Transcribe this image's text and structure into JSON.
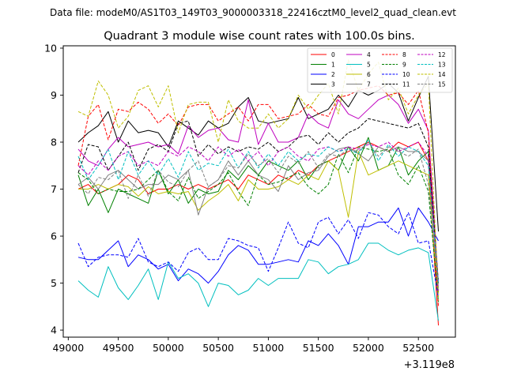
{
  "chart_data": {
    "type": "line",
    "suptitle": "Data file: modeM0/AS1T03_149T03_9000003318_22416cztM0_level2_quad_clean.evt",
    "title": "Quadrant 3 module wise count rates with 100.0s bins.",
    "xlabel": "",
    "ylabel": "",
    "x_offset_label": "+3.119e8",
    "xlim": [
      48950,
      52870
    ],
    "ylim": [
      3.85,
      10.05
    ],
    "xticks": [
      49000,
      49500,
      50000,
      50500,
      51000,
      51500,
      52000,
      52500
    ],
    "xtick_labels": [
      "49000",
      "49500",
      "50000",
      "50500",
      "51000",
      "51500",
      "52000",
      "52500"
    ],
    "yticks": [
      4,
      5,
      6,
      7,
      8,
      9,
      10
    ],
    "ytick_labels": [
      "4",
      "5",
      "6",
      "7",
      "8",
      "9",
      "10"
    ],
    "x": [
      49100,
      49200,
      49300,
      49400,
      49500,
      49600,
      49700,
      49800,
      49900,
      50000,
      50100,
      50200,
      50300,
      50400,
      50500,
      50600,
      50700,
      50800,
      50900,
      51000,
      51100,
      51200,
      51300,
      51400,
      51500,
      51600,
      51700,
      51800,
      51900,
      52000,
      52100,
      52200,
      52300,
      52400,
      52500,
      52600,
      52700
    ],
    "series": [
      {
        "name": "0",
        "color": "#ff0000",
        "dash": "solid",
        "values": [
          7.0,
          7.1,
          6.9,
          7.0,
          7.1,
          7.3,
          7.2,
          6.9,
          7.0,
          7.0,
          7.1,
          7.0,
          7.1,
          7.0,
          7.1,
          7.2,
          7.0,
          7.3,
          7.2,
          7.1,
          7.3,
          7.2,
          7.4,
          7.3,
          7.5,
          7.6,
          7.7,
          7.8,
          7.9,
          8.0,
          7.9,
          7.8,
          8.0,
          7.9,
          8.0,
          7.6,
          4.1
        ]
      },
      {
        "name": "1",
        "color": "#008000",
        "dash": "solid",
        "values": [
          7.3,
          6.65,
          7.0,
          6.5,
          7.0,
          6.9,
          6.8,
          6.7,
          7.4,
          6.9,
          7.2,
          6.7,
          7.0,
          6.9,
          6.95,
          7.4,
          7.2,
          7.5,
          7.3,
          7.6,
          7.5,
          7.4,
          7.6,
          7.2,
          7.5,
          7.6,
          7.4,
          7.9,
          7.6,
          8.1,
          7.4,
          7.5,
          7.9,
          7.3,
          7.6,
          7.8,
          4.8
        ]
      },
      {
        "name": "2",
        "color": "#0000ff",
        "dash": "solid",
        "values": [
          5.55,
          5.5,
          5.5,
          5.7,
          5.9,
          5.35,
          5.6,
          5.5,
          5.3,
          5.4,
          5.05,
          5.3,
          5.2,
          5.0,
          5.25,
          5.6,
          5.8,
          5.7,
          5.4,
          5.4,
          5.45,
          5.5,
          5.45,
          5.9,
          5.8,
          6.05,
          5.8,
          5.4,
          6.2,
          6.2,
          6.3,
          6.3,
          6.6,
          6.0,
          6.6,
          6.3,
          5.9
        ]
      },
      {
        "name": "3",
        "color": "#000000",
        "dash": "solid",
        "values": [
          8.0,
          8.2,
          8.35,
          8.65,
          8.0,
          8.45,
          8.2,
          8.25,
          8.2,
          7.9,
          8.45,
          8.3,
          8.15,
          8.45,
          8.3,
          8.4,
          8.75,
          8.95,
          8.45,
          8.4,
          8.45,
          8.5,
          8.95,
          8.5,
          8.6,
          8.7,
          9.0,
          8.75,
          9.1,
          9.0,
          9.1,
          9.25,
          9.05,
          8.45,
          8.95,
          9.4,
          6.1
        ]
      },
      {
        "name": "4",
        "color": "#bf00bf",
        "dash": "solid",
        "values": [
          7.85,
          7.6,
          7.5,
          7.85,
          8.1,
          7.9,
          7.95,
          8.0,
          7.9,
          7.95,
          7.75,
          8.35,
          8.1,
          8.25,
          8.3,
          8.05,
          8.0,
          8.9,
          7.95,
          8.4,
          8.0,
          8.0,
          8.1,
          8.6,
          8.4,
          8.3,
          8.9,
          8.6,
          8.5,
          8.7,
          8.9,
          9.0,
          8.8,
          8.4,
          8.7,
          8.25,
          5.0
        ]
      },
      {
        "name": "5",
        "color": "#00bfbf",
        "dash": "solid",
        "values": [
          5.05,
          4.85,
          4.7,
          5.35,
          4.9,
          4.65,
          4.95,
          5.3,
          4.65,
          5.45,
          5.1,
          5.2,
          5.0,
          4.5,
          5.0,
          4.95,
          4.75,
          4.85,
          5.1,
          4.95,
          5.1,
          5.1,
          5.1,
          5.5,
          5.45,
          5.2,
          5.35,
          5.4,
          5.5,
          5.85,
          5.85,
          5.7,
          5.6,
          5.7,
          5.75,
          5.65,
          4.2
        ]
      },
      {
        "name": "6",
        "color": "#bfbf00",
        "dash": "solid",
        "values": [
          7.0,
          7.0,
          7.1,
          7.0,
          7.1,
          7.05,
          6.85,
          7.05,
          6.9,
          6.95,
          6.9,
          6.95,
          6.55,
          6.75,
          6.9,
          7.1,
          6.75,
          7.2,
          7.0,
          7.0,
          7.05,
          7.2,
          7.1,
          7.3,
          7.2,
          7.6,
          7.4,
          6.4,
          7.8,
          7.3,
          7.4,
          7.5,
          7.6,
          7.5,
          7.4,
          7.3,
          4.6
        ]
      },
      {
        "name": "7",
        "color": "#808080",
        "dash": "solid",
        "values": [
          7.1,
          7.25,
          7.0,
          7.3,
          7.4,
          7.2,
          7.0,
          7.1,
          7.1,
          7.3,
          7.2,
          7.4,
          6.45,
          7.05,
          7.2,
          7.6,
          7.3,
          7.6,
          7.3,
          7.2,
          6.95,
          7.5,
          7.2,
          7.35,
          7.4,
          7.7,
          7.85,
          7.9,
          7.75,
          7.6,
          7.9,
          7.8,
          7.9,
          7.8,
          7.8,
          7.6,
          4.9
        ]
      },
      {
        "name": "8",
        "color": "#ff0000",
        "dash": "dashed",
        "values": [
          7.5,
          8.55,
          8.8,
          8.05,
          8.7,
          8.65,
          8.85,
          8.7,
          8.4,
          8.6,
          8.35,
          8.75,
          8.8,
          8.8,
          8.45,
          8.6,
          8.75,
          8.45,
          8.8,
          8.8,
          8.5,
          8.55,
          8.6,
          8.8,
          8.6,
          8.55,
          8.95,
          9.0,
          9.1,
          9.15,
          9.2,
          9.0,
          9.05,
          8.8,
          9.1,
          8.2,
          4.5
        ]
      },
      {
        "name": "9",
        "color": "#008000",
        "dash": "dashed",
        "values": [
          7.35,
          7.2,
          6.9,
          7.0,
          6.95,
          6.95,
          7.0,
          7.2,
          7.4,
          6.95,
          6.75,
          7.25,
          6.8,
          6.95,
          7.1,
          7.35,
          6.95,
          6.65,
          7.3,
          7.1,
          7.15,
          7.25,
          7.35,
          7.05,
          6.9,
          7.1,
          7.75,
          7.35,
          7.9,
          7.85,
          7.8,
          7.85,
          7.3,
          7.1,
          7.5,
          6.95,
          4.6
        ]
      },
      {
        "name": "10",
        "color": "#0000ff",
        "dash": "dashed",
        "values": [
          5.85,
          5.35,
          5.55,
          5.6,
          5.6,
          5.55,
          5.95,
          5.45,
          5.35,
          5.45,
          5.25,
          5.65,
          5.75,
          5.5,
          5.5,
          5.95,
          5.9,
          5.8,
          5.75,
          5.25,
          5.75,
          6.3,
          5.85,
          5.75,
          6.3,
          6.4,
          6.05,
          6.35,
          5.95,
          6.5,
          6.45,
          6.2,
          6.05,
          6.5,
          5.85,
          5.9,
          4.7
        ]
      },
      {
        "name": "11",
        "color": "#000000",
        "dash": "dashed",
        "values": [
          7.35,
          7.95,
          7.9,
          7.4,
          7.7,
          8.0,
          7.4,
          7.85,
          7.95,
          7.8,
          8.4,
          8.45,
          7.7,
          7.95,
          7.75,
          7.9,
          7.8,
          7.9,
          7.85,
          8.0,
          7.8,
          7.9,
          8.1,
          8.15,
          7.95,
          8.2,
          8.0,
          8.2,
          8.3,
          8.5,
          8.45,
          8.4,
          8.35,
          8.3,
          8.4,
          7.9,
          5.0
        ]
      },
      {
        "name": "12",
        "color": "#bf00bf",
        "dash": "dashed",
        "values": [
          7.5,
          7.3,
          7.6,
          7.4,
          7.7,
          7.8,
          7.5,
          7.6,
          7.5,
          7.8,
          7.7,
          7.9,
          7.8,
          7.6,
          7.9,
          7.7,
          7.85,
          7.6,
          7.8,
          7.5,
          7.8,
          7.9,
          7.7,
          7.6,
          7.85,
          7.9,
          7.8,
          7.9,
          7.85,
          7.95,
          7.9,
          8.0,
          7.8,
          7.9,
          8.0,
          7.7,
          4.8
        ]
      },
      {
        "name": "13",
        "color": "#00bfbf",
        "dash": "dashed",
        "values": [
          7.7,
          7.2,
          7.5,
          7.85,
          7.2,
          7.8,
          7.3,
          7.6,
          7.3,
          7.65,
          7.25,
          7.8,
          7.4,
          7.55,
          7.5,
          7.85,
          7.45,
          7.8,
          7.45,
          7.75,
          7.5,
          7.8,
          7.6,
          7.75,
          7.7,
          7.9,
          7.8,
          7.85,
          7.75,
          8.05,
          7.6,
          7.95,
          7.7,
          7.9,
          7.8,
          7.5,
          5.0
        ]
      },
      {
        "name": "14",
        "color": "#bfbf00",
        "dash": "dashed",
        "values": [
          8.65,
          8.55,
          9.3,
          9.0,
          8.3,
          8.55,
          9.1,
          9.2,
          8.75,
          9.2,
          8.2,
          8.8,
          8.85,
          8.85,
          8.0,
          8.9,
          8.45,
          8.3,
          8.3,
          8.6,
          8.3,
          8.5,
          9.0,
          8.7,
          9.0,
          9.25,
          8.6,
          9.75,
          9.1,
          9.45,
          9.7,
          8.9,
          9.15,
          8.6,
          9.0,
          9.25,
          4.7
        ]
      },
      {
        "name": "15",
        "color": "#808080",
        "dash": "dashed",
        "values": [
          7.1,
          6.9,
          7.25,
          7.2,
          7.4,
          6.8,
          7.3,
          6.85,
          7.4,
          7.15,
          7.05,
          7.4,
          7.6,
          7.05,
          7.2,
          7.5,
          7.45,
          7.75,
          7.5,
          7.65,
          7.35,
          7.7,
          7.55,
          7.8,
          7.45,
          7.75,
          7.7,
          7.85,
          7.8,
          8.0,
          7.7,
          7.9,
          7.8,
          7.7,
          7.85,
          7.1,
          4.9
        ]
      }
    ]
  }
}
